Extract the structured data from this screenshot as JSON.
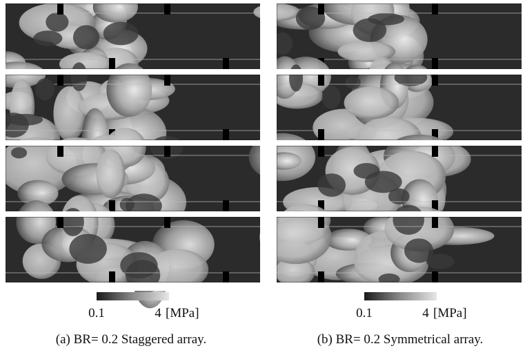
{
  "figure": {
    "left": {
      "colorbar": {
        "min": 0.1,
        "max": 4,
        "unit": "[MPa]"
      },
      "caption": "(a) BR= 0.2 Staggered array."
    },
    "right": {
      "colorbar": {
        "min": 0.1,
        "max": 4,
        "unit": "[MPa]"
      },
      "caption": "(b) BR= 0.2 Symmetrical array."
    }
  }
}
